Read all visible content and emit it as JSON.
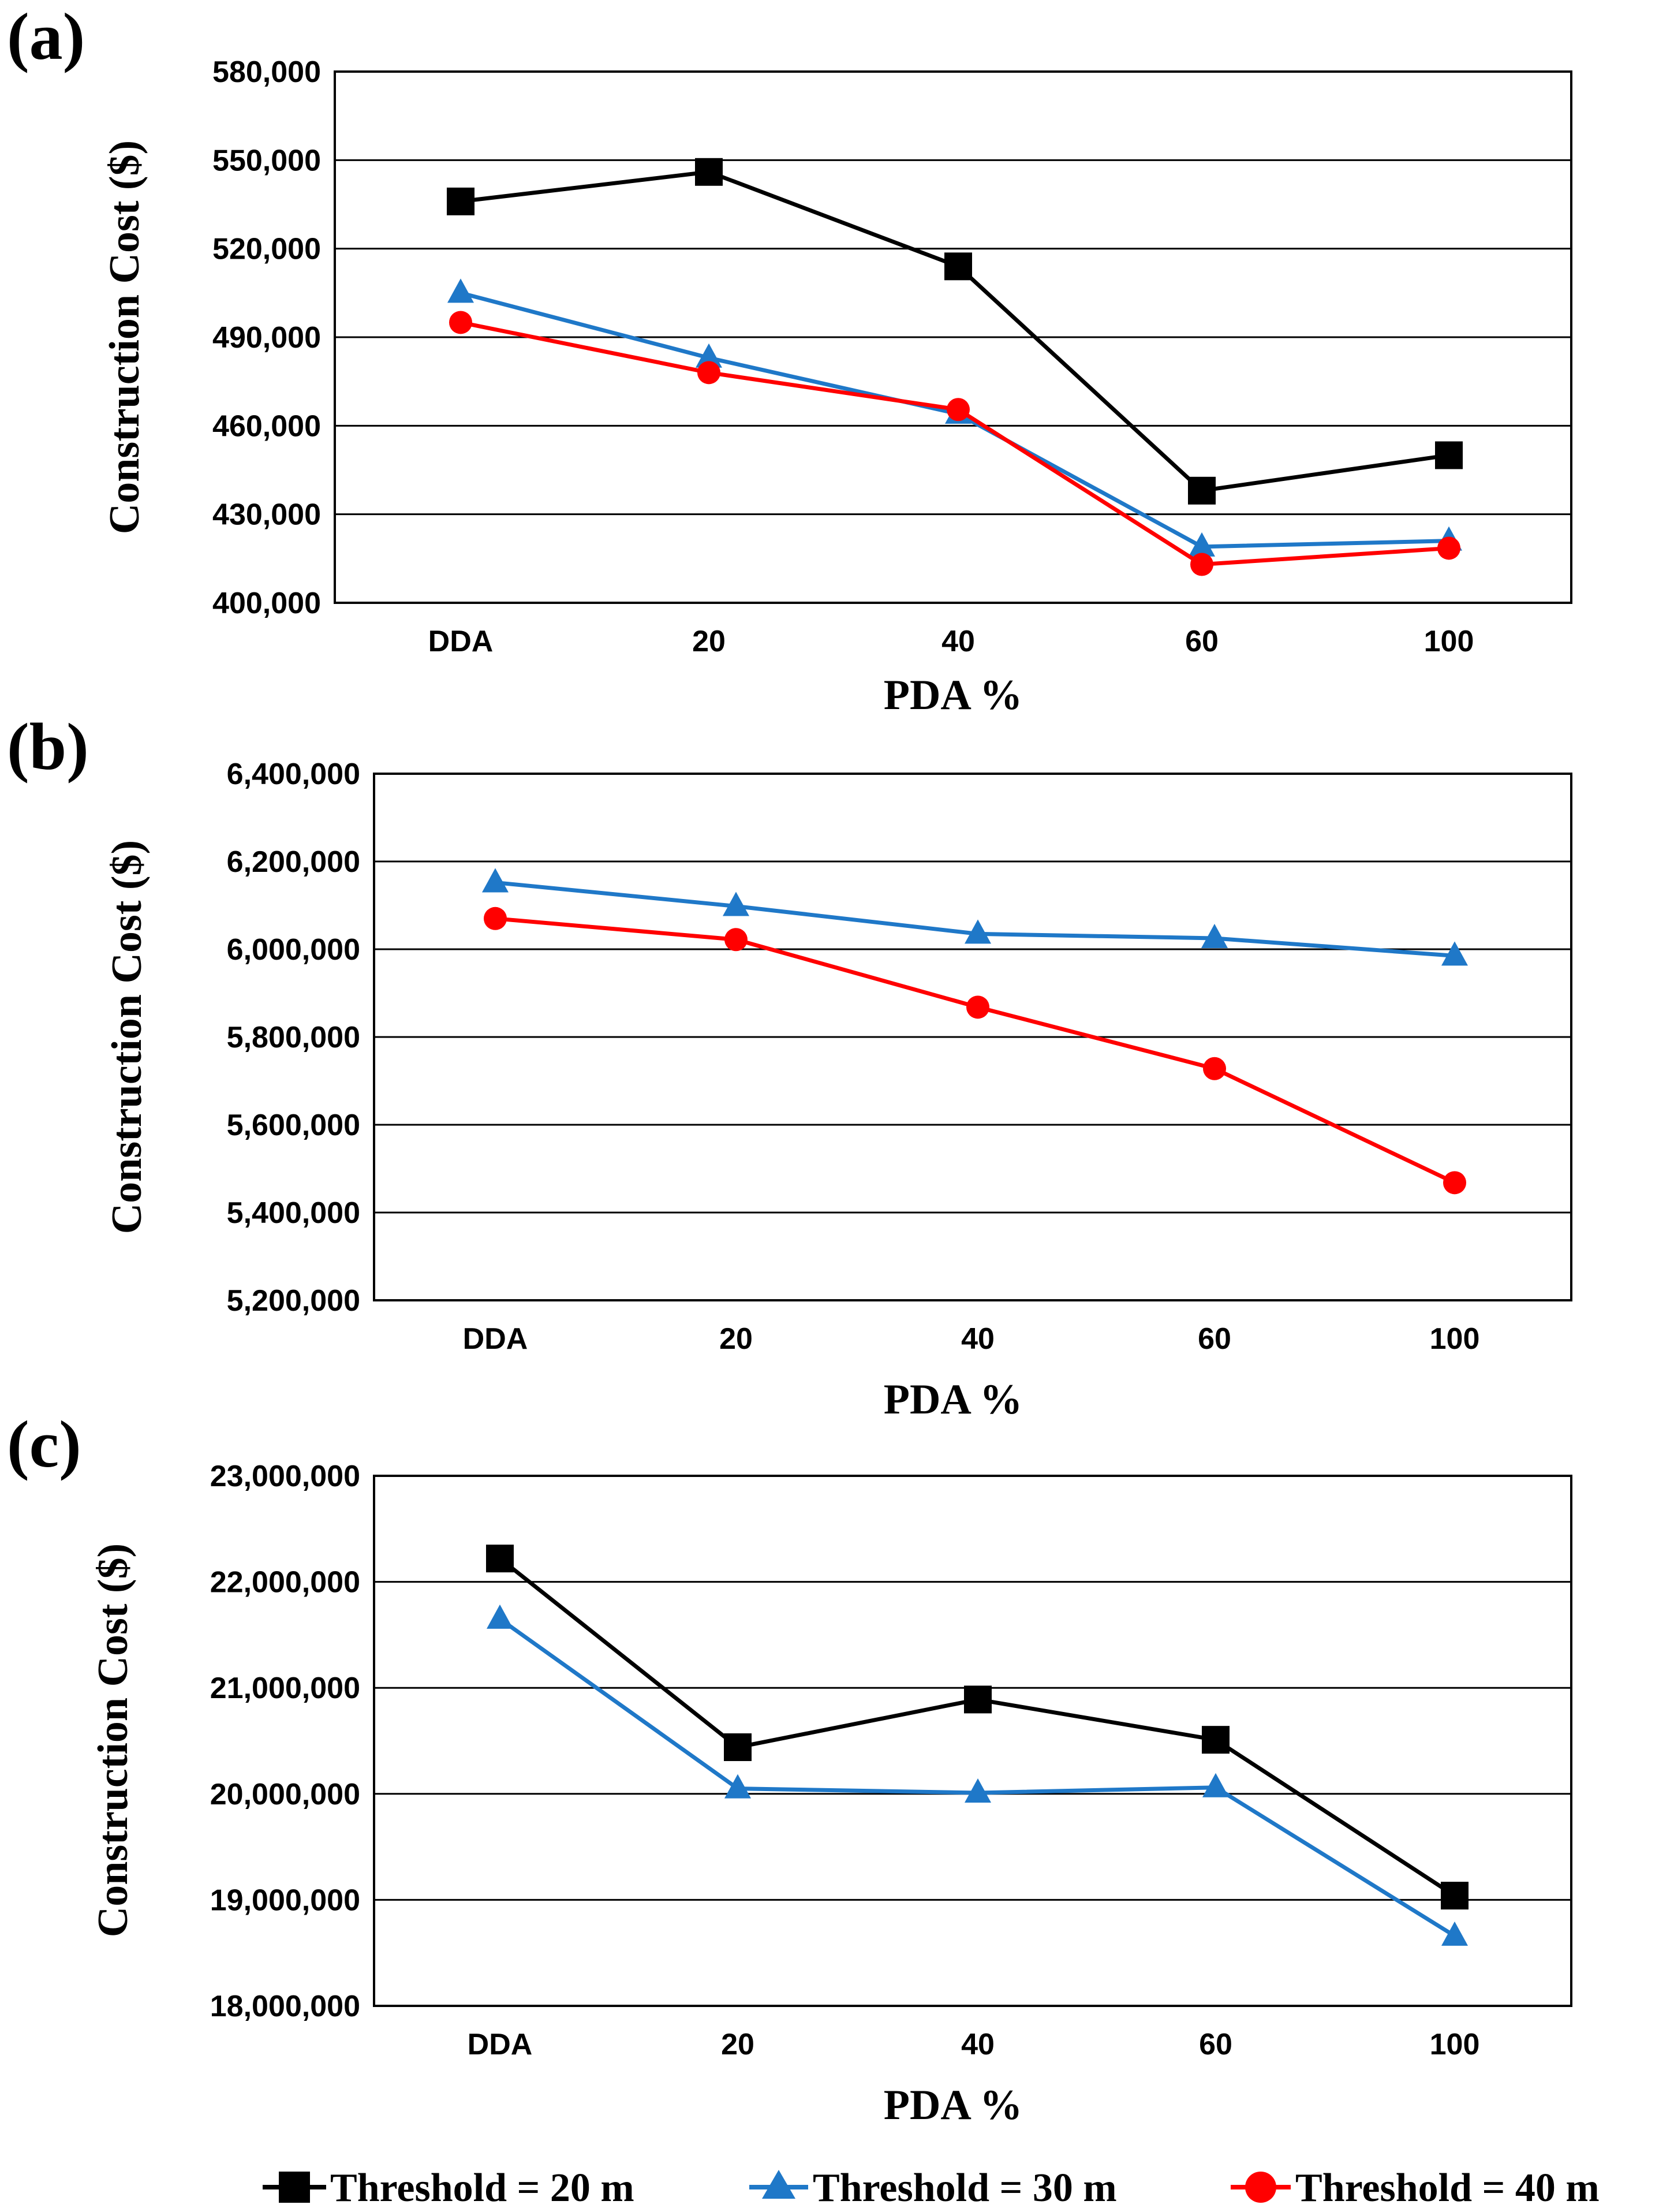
{
  "legend": [
    {
      "name": "Threshold = 20 m",
      "color": "#000000",
      "marker": "square"
    },
    {
      "name": "Threshold = 30 m",
      "color": "#1f78c8",
      "marker": "triangle"
    },
    {
      "name": "Threshold = 40 m",
      "color": "#ff0000",
      "marker": "circle"
    }
  ],
  "chart_data": [
    {
      "panel": "(a)",
      "type": "line",
      "xlabel": "PDA %",
      "ylabel": "Construction Cost ($)",
      "categories": [
        "DDA",
        "20",
        "40",
        "60",
        "100"
      ],
      "ylim": [
        400000,
        580000
      ],
      "yticks": [
        400000,
        430000,
        460000,
        490000,
        520000,
        550000,
        580000
      ],
      "ytick_labels": [
        "400,000",
        "430,000",
        "460,000",
        "490,000",
        "520,000",
        "550,000",
        "580,000"
      ],
      "grid": true,
      "series": [
        {
          "name": "Threshold = 20 m",
          "values": [
            536000,
            546000,
            514000,
            438000,
            450000
          ]
        },
        {
          "name": "Threshold = 30 m",
          "values": [
            505000,
            483000,
            464000,
            419000,
            421000
          ]
        },
        {
          "name": "Threshold = 40 m",
          "values": [
            495000,
            478000,
            465500,
            413000,
            418500
          ]
        }
      ]
    },
    {
      "panel": "(b)",
      "type": "line",
      "xlabel": "PDA %",
      "ylabel": "Construction Cost ($)",
      "categories": [
        "DDA",
        "20",
        "40",
        "60",
        "100"
      ],
      "ylim": [
        5200000,
        6400000
      ],
      "yticks": [
        5200000,
        5400000,
        5600000,
        5800000,
        6000000,
        6200000,
        6400000
      ],
      "ytick_labels": [
        "5,200,000",
        "5,400,000",
        "5,600,000",
        "5,800,000",
        "6,000,000",
        "6,200,000",
        "6,400,000"
      ],
      "grid": true,
      "series": [
        {
          "name": "Threshold = 30 m",
          "values": [
            6152000,
            6098000,
            6035000,
            6025000,
            5985000
          ]
        },
        {
          "name": "Threshold = 40 m",
          "values": [
            6070000,
            6022000,
            5868000,
            5728000,
            5468000
          ]
        }
      ]
    },
    {
      "panel": "(c)",
      "type": "line",
      "xlabel": "PDA %",
      "ylabel": "Construction Cost ($)",
      "categories": [
        "DDA",
        "20",
        "40",
        "60",
        "100"
      ],
      "ylim": [
        18000000,
        23000000
      ],
      "yticks": [
        18000000,
        19000000,
        20000000,
        21000000,
        22000000,
        23000000
      ],
      "ytick_labels": [
        "18,000,000",
        "19,000,000",
        "20,000,000",
        "21,000,000",
        "22,000,000",
        "23,000,000"
      ],
      "grid": true,
      "series": [
        {
          "name": "Threshold = 20 m",
          "values": [
            22220000,
            20440000,
            20890000,
            20510000,
            19040000
          ]
        },
        {
          "name": "Threshold = 30 m",
          "values": [
            21650000,
            20050000,
            20010000,
            20060000,
            18660000
          ]
        }
      ]
    }
  ]
}
